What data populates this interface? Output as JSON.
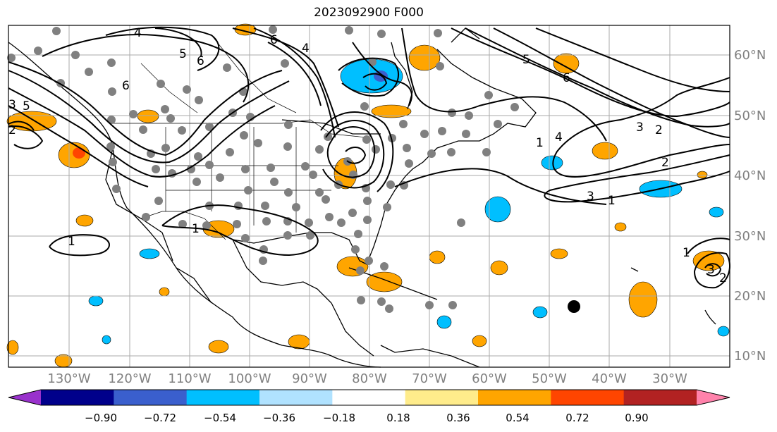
{
  "title": "2023092900 F000",
  "lat_labels": [
    "60°N",
    "50°N",
    "40°N",
    "30°N",
    "20°N",
    "10°N"
  ],
  "lon_labels": [
    "130°W",
    "120°W",
    "110°W",
    "100°W",
    "90°W",
    "80°W",
    "70°W",
    "60°W",
    "50°W",
    "40°W",
    "30°W"
  ],
  "colorbar": {
    "ticks": [
      "−0.90",
      "−0.72",
      "−0.54",
      "−0.36",
      "−0.18",
      "0.18",
      "0.36",
      "0.54",
      "0.72",
      "0.90"
    ],
    "colors": [
      "#9932cc",
      "#00008b",
      "#3a5fcd",
      "#00bfff",
      "#b0e2ff",
      "#ffffff",
      "#ffec8b",
      "#ffa500",
      "#ff4500",
      "#b22222",
      "#ff82ab"
    ]
  },
  "contour_labels": [
    "4",
    "6",
    "5",
    "6",
    "4",
    "6",
    "5",
    "3",
    "2",
    "1",
    "1",
    "1",
    "5",
    "6",
    "3",
    "2",
    "2",
    "1",
    "3",
    "4",
    "1",
    "3",
    "2"
  ]
}
